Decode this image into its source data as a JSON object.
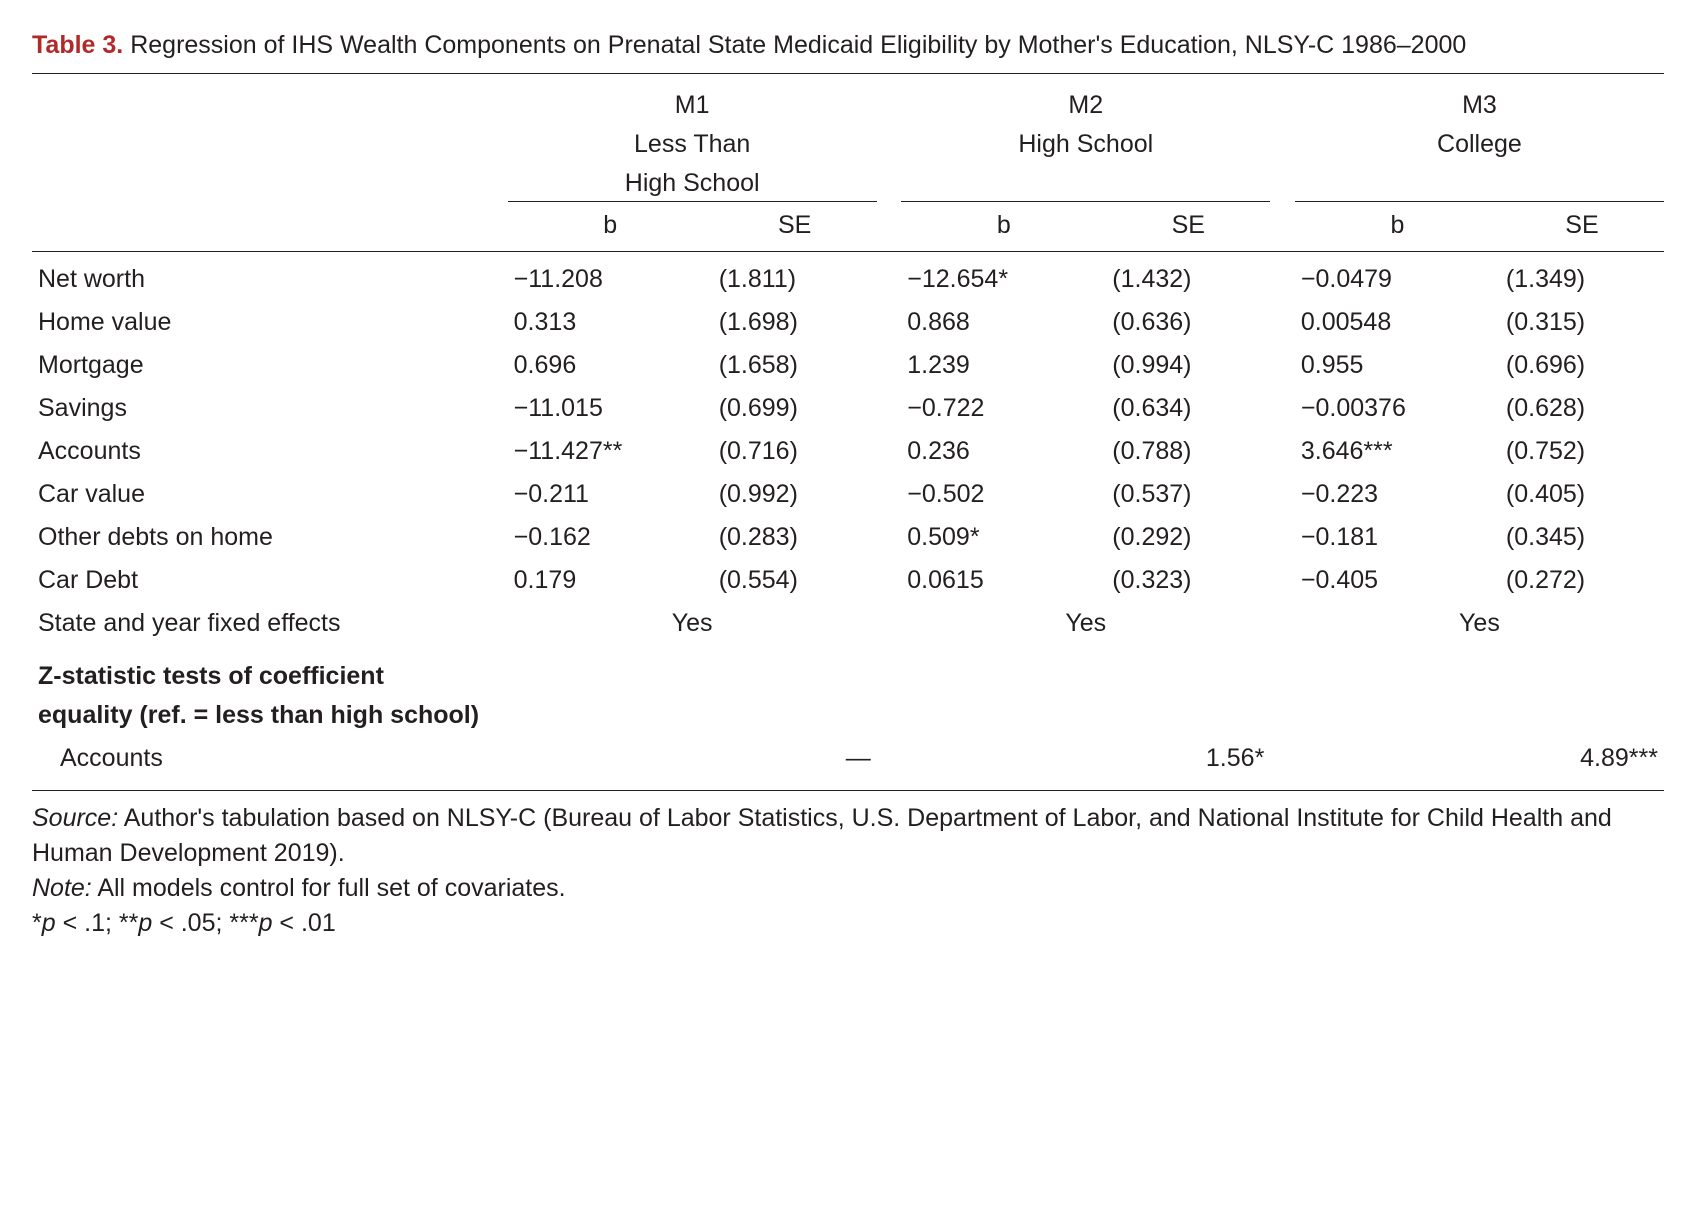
{
  "title": {
    "label": "Table 3.",
    "text": "Regression of IHS Wealth Components on Prenatal State Medicaid Eligibility by Mother's Education, NLSY-C 1986–2000"
  },
  "columns": {
    "m1": {
      "code": "M1",
      "label": "Less Than",
      "label2": "High School"
    },
    "m2": {
      "code": "M2",
      "label": "High School",
      "label2": ""
    },
    "m3": {
      "code": "M3",
      "label": "College",
      "label2": ""
    },
    "b": "b",
    "se": "SE"
  },
  "rows": [
    {
      "label": "Net worth",
      "m1b": "−11.208",
      "m1se": "(1.811)",
      "m2b": "−12.654*",
      "m2se": "(1.432)",
      "m3b": "−0.0479",
      "m3se": "(1.349)"
    },
    {
      "label": "Home value",
      "m1b": "0.313",
      "m1se": "(1.698)",
      "m2b": "0.868",
      "m2se": "(0.636)",
      "m3b": "0.00548",
      "m3se": "(0.315)"
    },
    {
      "label": "Mortgage",
      "m1b": "0.696",
      "m1se": "(1.658)",
      "m2b": "1.239",
      "m2se": "(0.994)",
      "m3b": "0.955",
      "m3se": "(0.696)"
    },
    {
      "label": "Savings",
      "m1b": "−11.015",
      "m1se": "(0.699)",
      "m2b": "−0.722",
      "m2se": "(0.634)",
      "m3b": "−0.00376",
      "m3se": "(0.628)"
    },
    {
      "label": "Accounts",
      "m1b": "−11.427**",
      "m1se": "(0.716)",
      "m2b": "0.236",
      "m2se": "(0.788)",
      "m3b": "3.646***",
      "m3se": "(0.752)"
    },
    {
      "label": "Car value",
      "m1b": "−0.211",
      "m1se": "(0.992)",
      "m2b": "−0.502",
      "m2se": "(0.537)",
      "m3b": "−0.223",
      "m3se": "(0.405)"
    },
    {
      "label": "Other debts on home",
      "m1b": "−0.162",
      "m1se": "(0.283)",
      "m2b": "0.509*",
      "m2se": "(0.292)",
      "m3b": "−0.181",
      "m3se": "(0.345)"
    },
    {
      "label": "Car Debt",
      "m1b": "0.179",
      "m1se": "(0.554)",
      "m2b": "0.0615",
      "m2se": "(0.323)",
      "m3b": "−0.405",
      "m3se": "(0.272)"
    }
  ],
  "fixed_effects": {
    "label": "State and year fixed effects",
    "m1": "Yes",
    "m2": "Yes",
    "m3": "Yes"
  },
  "ztest": {
    "header1": "Z-statistic tests of coefficient",
    "header2": "equality (ref. = less than high school)",
    "row": {
      "label": "Accounts",
      "m1": "—",
      "m2": "1.56*",
      "m3": "4.89***"
    }
  },
  "notes": {
    "source_label": "Source:",
    "source_text": " Author's tabulation based on NLSY-C (Bureau of Labor Statistics, U.S. Department of Labor, and National Institute for Child Health and Human Development 2019).",
    "note_label": "Note:",
    "note_text": " All models control for full set of covariates.",
    "sig": "*p < .1; **p < .05; ***p < .01"
  }
}
